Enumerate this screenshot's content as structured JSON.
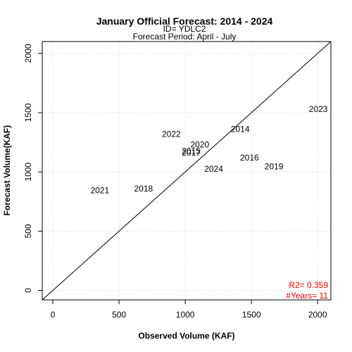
{
  "chart_data": {
    "type": "scatter",
    "title": "January Official Forecast: 2014 - 2024",
    "subtitle_id": "ID= YDLC2",
    "subtitle_period": "Forecast Period:  April - July",
    "xlabel": "Observed Volume (KAF)",
    "ylabel": "Forecast Volume(KAF)",
    "xlim": [
      -80,
      2100
    ],
    "ylim": [
      -80,
      2100
    ],
    "xticks": [
      0,
      500,
      1000,
      1500,
      2000
    ],
    "yticks": [
      0,
      500,
      1000,
      1500,
      2000
    ],
    "grid": true,
    "reference_line": "1:1",
    "points": [
      {
        "label": "2014",
        "x": 1415,
        "y": 1360
      },
      {
        "label": "2015",
        "x": 1045,
        "y": 1175
      },
      {
        "label": "2016",
        "x": 1485,
        "y": 1120
      },
      {
        "label": "2017",
        "x": 1045,
        "y": 1160
      },
      {
        "label": "2018",
        "x": 685,
        "y": 860
      },
      {
        "label": "2019",
        "x": 1670,
        "y": 1045
      },
      {
        "label": "2020",
        "x": 1110,
        "y": 1230
      },
      {
        "label": "2021",
        "x": 355,
        "y": 845
      },
      {
        "label": "2022",
        "x": 895,
        "y": 1320
      },
      {
        "label": "2023",
        "x": 2005,
        "y": 1530
      },
      {
        "label": "2024",
        "x": 1215,
        "y": 1025
      }
    ],
    "stats": {
      "r2": "R2=  0.359",
      "years": "#Years=  11",
      "color": "#ff0000"
    }
  }
}
